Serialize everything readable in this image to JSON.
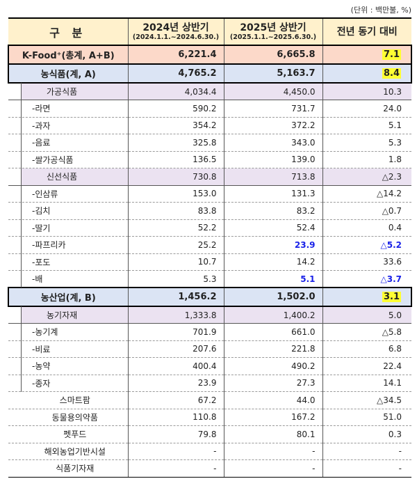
{
  "unit_note": "(단위 : 백만불, %)",
  "header": {
    "col1": "구  분",
    "col2_main": "2024년 상반기",
    "col2_sub": "(2024.1.1.~2024.6.30.)",
    "col3_main": "2025년 상반기",
    "col3_sub": "(2025.1.1.~2025.6.30.)",
    "col4": "전년 동기 대비"
  },
  "rows": [
    {
      "level": "total",
      "label": "K-Food⁺(총계, A+B)",
      "y2024": "6,221.4",
      "y2025": "6,665.8",
      "change": "7.1",
      "change_highlight": true
    },
    {
      "level": "group",
      "label": "농식품(계, A)",
      "y2024": "4,765.2",
      "y2025": "5,163.7",
      "change": "8.4",
      "change_highlight": true
    },
    {
      "level": "sub",
      "label": "가공식품",
      "y2024": "4,034.4",
      "y2025": "4,450.0",
      "change": "10.3"
    },
    {
      "level": "item",
      "label": "-라면",
      "y2024": "590.2",
      "y2025": "731.7",
      "change": "24.0"
    },
    {
      "level": "item",
      "label": "-과자",
      "y2024": "354.2",
      "y2025": "372.2",
      "change": "5.1"
    },
    {
      "level": "item",
      "label": "-음료",
      "y2024": "325.8",
      "y2025": "343.0",
      "change": "5.3"
    },
    {
      "level": "item",
      "label": "-쌀가공식품",
      "y2024": "136.5",
      "y2025": "139.0",
      "change": "1.8"
    },
    {
      "level": "sub",
      "label": "신선식품",
      "y2024": "730.8",
      "y2025": "713.8",
      "change": "△2.3"
    },
    {
      "level": "item",
      "label": "-인삼류",
      "y2024": "153.0",
      "y2025": "131.3",
      "change": "△14.2"
    },
    {
      "level": "item",
      "label": "-김치",
      "y2024": "83.8",
      "y2025": "83.2",
      "change": "△0.7"
    },
    {
      "level": "item",
      "label": "-딸기",
      "y2024": "52.2",
      "y2025": "52.4",
      "change": "0.4"
    },
    {
      "level": "item",
      "label": "-파프리카",
      "y2024": "25.2",
      "y2025": "23.9",
      "change": "△5.2",
      "blue": true
    },
    {
      "level": "item",
      "label": "-포도",
      "y2024": "10.7",
      "y2025": "14.2",
      "change": "33.6"
    },
    {
      "level": "item",
      "label": "-배",
      "y2024": "5.3",
      "y2025": "5.1",
      "change": "△3.7",
      "blue": true
    },
    {
      "level": "group",
      "label": "농산업(계, B)",
      "y2024": "1,456.2",
      "y2025": "1,502.0",
      "change": "3.1",
      "change_highlight": true
    },
    {
      "level": "sub",
      "label": "농기자재",
      "y2024": "1,333.8",
      "y2025": "1,400.2",
      "change": "5.0"
    },
    {
      "level": "item",
      "label": "-농기계",
      "y2024": "701.9",
      "y2025": "661.0",
      "change": "△5.8"
    },
    {
      "level": "item",
      "label": "-비료",
      "y2024": "207.6",
      "y2025": "221.8",
      "change": "6.8"
    },
    {
      "level": "item",
      "label": "-농약",
      "y2024": "400.4",
      "y2025": "490.2",
      "change": "22.4"
    },
    {
      "level": "item",
      "label": "-종자",
      "y2024": "23.9",
      "y2025": "27.3",
      "change": "14.1"
    },
    {
      "level": "other",
      "label": "스마트팜",
      "y2024": "67.2",
      "y2025": "44.0",
      "change": "△34.5"
    },
    {
      "level": "other",
      "label": "동물용의약품",
      "y2024": "110.8",
      "y2025": "167.2",
      "change": "51.0"
    },
    {
      "level": "other",
      "label": "펫푸드",
      "y2024": "79.8",
      "y2025": "80.1",
      "change": "0.3"
    },
    {
      "level": "other",
      "label": "해외농업기반시설",
      "y2024": "-",
      "y2025": "-",
      "change": "-"
    },
    {
      "level": "other",
      "label": "식품기자재",
      "y2024": "-",
      "y2025": "-",
      "change": "-"
    }
  ]
}
